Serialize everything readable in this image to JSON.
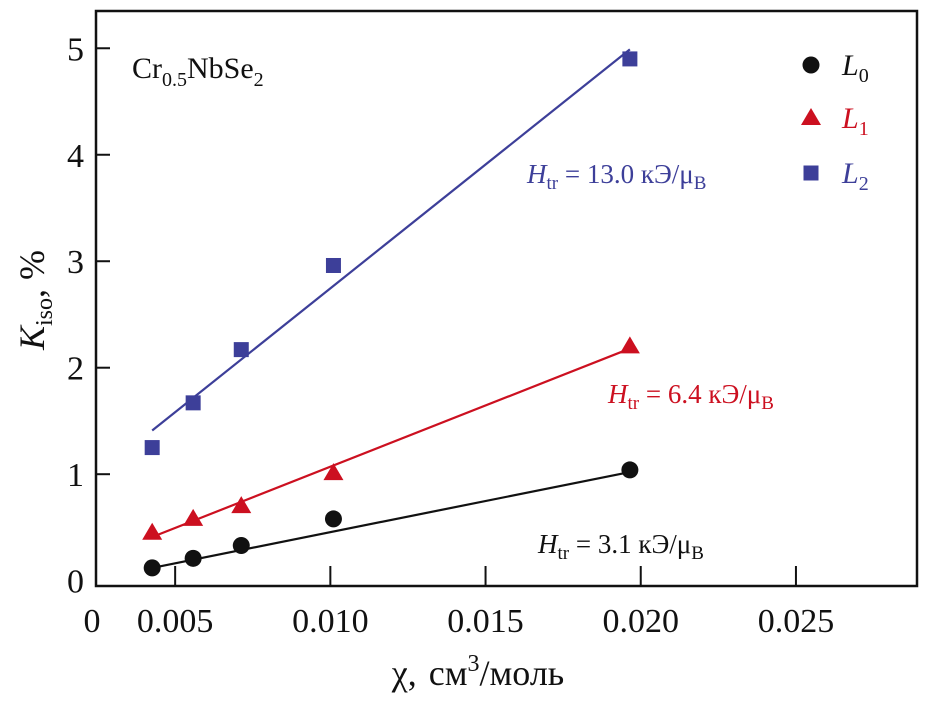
{
  "chart_data": {
    "type": "scatter",
    "title": "",
    "compound": {
      "base": "Cr",
      "sub1": "0.5",
      "mid": "NbSe",
      "sub2": "2"
    },
    "xlabel": {
      "symbol": "χ,",
      "unit_base": "см",
      "unit_sup": "3",
      "unit_rest": "/моль"
    },
    "ylabel": {
      "symbol": "K",
      "sub": "iso",
      "rest": ", %"
    },
    "xlim": [
      0.00245,
      0.0289
    ],
    "ylim": [
      -0.05,
      5.35
    ],
    "x_ticks": [
      {
        "value": 0.00245,
        "label": "0"
      },
      {
        "value": 0.005,
        "label": "0.005"
      },
      {
        "value": 0.01,
        "label": "0.010"
      },
      {
        "value": 0.015,
        "label": "0.015"
      },
      {
        "value": 0.02,
        "label": "0.020"
      },
      {
        "value": 0.025,
        "label": "0.025"
      }
    ],
    "y_ticks": [
      {
        "value": 0,
        "label": "0"
      },
      {
        "value": 1,
        "label": "1"
      },
      {
        "value": 2,
        "label": "2"
      },
      {
        "value": 3,
        "label": "3"
      },
      {
        "value": 4,
        "label": "4"
      },
      {
        "value": 5,
        "label": "5"
      }
    ],
    "grid": false,
    "legend_position": "top-right",
    "series": [
      {
        "name": "L",
        "sub": "0",
        "marker": "circle",
        "color": "#111111",
        "x": [
          0.00426,
          0.00558,
          0.00713,
          0.0101,
          0.01965
        ],
        "y": [
          0.12,
          0.21,
          0.33,
          0.58,
          1.04
        ],
        "fit": {
          "x": [
            0.00426,
            0.01965
          ],
          "y": [
            0.12,
            1.02
          ]
        },
        "annotation": {
          "H": "H",
          "sub": "tr",
          "text": " = 3.1 кЭ/μ",
          "tail": "B"
        }
      },
      {
        "name": "L",
        "sub": "1",
        "marker": "triangle",
        "color": "#cc1020",
        "x": [
          0.00426,
          0.00558,
          0.00713,
          0.0101,
          0.01965
        ],
        "y": [
          0.45,
          0.58,
          0.7,
          1.01,
          2.2
        ],
        "fit": {
          "x": [
            0.00426,
            0.01965
          ],
          "y": [
            0.41,
            2.18
          ]
        },
        "annotation": {
          "H": "H",
          "sub": "tr",
          "text": " = 6.4 кЭ/μ",
          "tail": "B"
        }
      },
      {
        "name": "L",
        "sub": "2",
        "marker": "square",
        "color": "#3d3f99",
        "x": [
          0.00426,
          0.00558,
          0.00713,
          0.0101,
          0.01965
        ],
        "y": [
          1.25,
          1.67,
          2.17,
          2.96,
          4.9
        ],
        "fit": {
          "x": [
            0.00426,
            0.01965
          ],
          "y": [
            1.41,
            4.99
          ]
        },
        "annotation": {
          "H": "H",
          "sub": "tr",
          "text": " = 13.0 кЭ/μ",
          "tail": "B"
        }
      }
    ]
  }
}
